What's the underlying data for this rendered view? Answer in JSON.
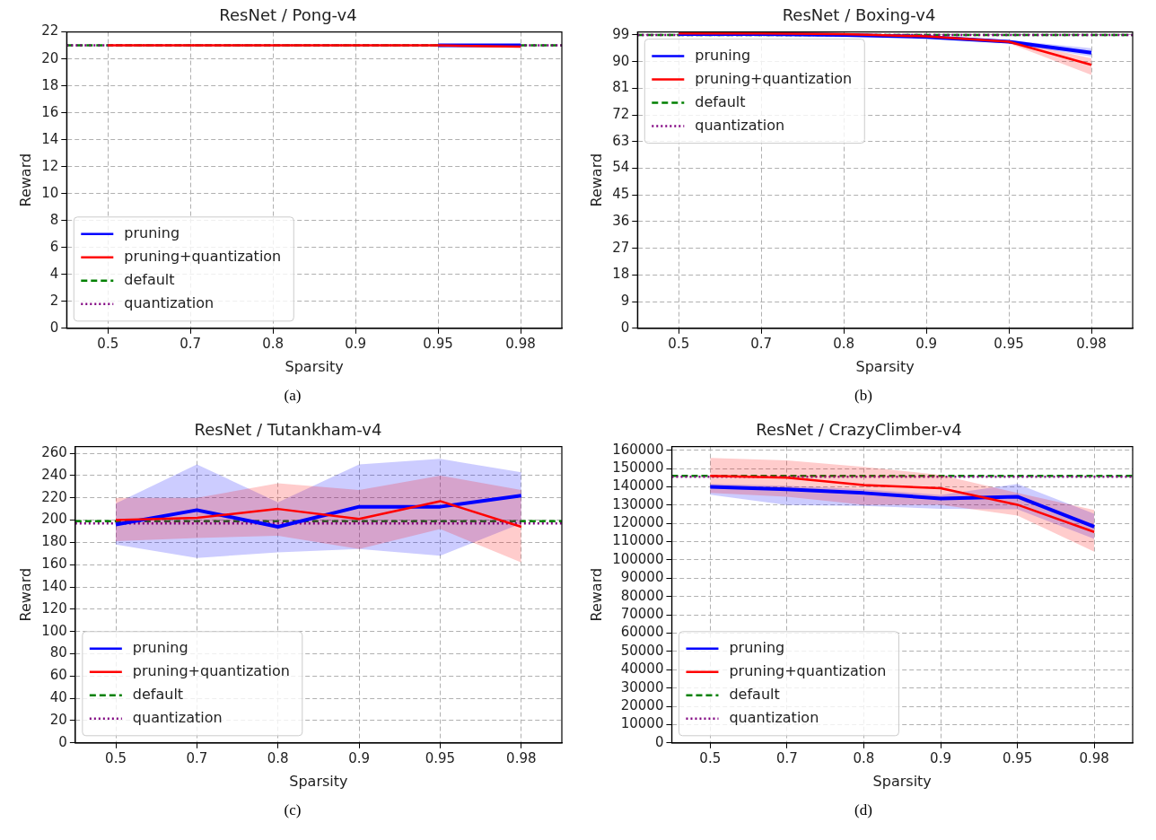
{
  "chart_data": [
    {
      "type": "line",
      "title": "ResNet / Pong-v4",
      "xlabel": "Sparsity",
      "ylabel": "Reward",
      "categories": [
        "0.5",
        "0.7",
        "0.8",
        "0.9",
        "0.95",
        "0.98"
      ],
      "ylim": [
        0,
        22
      ],
      "yticks": [
        0,
        2,
        4,
        6,
        8,
        10,
        12,
        14,
        16,
        18,
        20,
        22
      ],
      "grid": true,
      "legend": "bottom left",
      "annotations": [
        "(a)"
      ],
      "series": [
        {
          "name": "pruning",
          "color": "#0000ff",
          "values": [
            null,
            null,
            null,
            null,
            21,
            21
          ]
        },
        {
          "name": "pruning+quantization",
          "color": "#ff0000",
          "values": [
            21,
            21,
            21,
            21,
            21,
            20.9
          ]
        }
      ],
      "ref_lines": [
        {
          "axis": "y",
          "value": 21,
          "label": "default",
          "color": "#008000",
          "line_style": "dashed"
        },
        {
          "axis": "y",
          "value": 21,
          "label": "quantization",
          "color": "#800080",
          "line_style": "dotted"
        }
      ]
    },
    {
      "type": "line",
      "title": "ResNet / Boxing-v4",
      "xlabel": "Sparsity",
      "ylabel": "Reward",
      "categories": [
        "0.5",
        "0.7",
        "0.8",
        "0.9",
        "0.95",
        "0.98"
      ],
      "ylim": [
        0,
        100
      ],
      "yticks": [
        0,
        9,
        18,
        27,
        36,
        45,
        54,
        63,
        72,
        81,
        90,
        99
      ],
      "grid": true,
      "legend": "top left",
      "annotations": [
        "(b)"
      ],
      "series": [
        {
          "name": "pruning",
          "color": "#0000ff",
          "values": [
            99.3,
            99.3,
            99,
            98.3,
            96.7,
            93
          ],
          "lower": [
            99,
            99,
            98.7,
            97.8,
            96.2,
            91.7
          ],
          "upper": [
            99.6,
            99.6,
            99.3,
            98.8,
            97.2,
            94.5
          ]
        },
        {
          "name": "pruning+quantization",
          "color": "#ff0000",
          "values": [
            99.5,
            99.5,
            99.3,
            98.5,
            96.7,
            88.9
          ],
          "lower": [
            99.2,
            99.2,
            99,
            98,
            96.2,
            85.5
          ],
          "upper": [
            99.8,
            99.8,
            99.6,
            99,
            97.2,
            91.1
          ]
        }
      ],
      "ref_lines": [
        {
          "axis": "y",
          "value": 99,
          "label": "default",
          "color": "#008000",
          "line_style": "dashed"
        },
        {
          "axis": "y",
          "value": 99,
          "label": "quantization",
          "color": "#800080",
          "line_style": "dotted"
        }
      ]
    },
    {
      "type": "line",
      "title": "ResNet / Tutankham-v4",
      "xlabel": "Sparsity",
      "ylabel": "Reward",
      "categories": [
        "0.5",
        "0.7",
        "0.8",
        "0.9",
        "0.95",
        "0.98"
      ],
      "ylim": [
        0,
        266
      ],
      "yticks": [
        0,
        20,
        40,
        60,
        80,
        100,
        120,
        140,
        160,
        180,
        200,
        220,
        240,
        260
      ],
      "grid": true,
      "legend": "bottom left",
      "annotations": [
        "(c)"
      ],
      "series": [
        {
          "name": "pruning",
          "color": "#0000ff",
          "values": [
            196,
            209,
            194,
            212,
            212,
            222
          ],
          "lower": [
            178,
            166,
            171,
            174,
            168,
            197
          ],
          "upper": [
            215,
            250,
            216,
            250,
            255,
            243
          ]
        },
        {
          "name": "pruning+quantization",
          "color": "#ff0000",
          "values": [
            200,
            202,
            210,
            201,
            217,
            194
          ],
          "lower": [
            181,
            184,
            186,
            174,
            192,
            162
          ],
          "upper": [
            220,
            220,
            233,
            227,
            240,
            227
          ]
        }
      ],
      "ref_lines": [
        {
          "axis": "y",
          "value": 199,
          "label": "default",
          "color": "#008000",
          "line_style": "dashed"
        },
        {
          "axis": "y",
          "value": 197,
          "label": "quantization",
          "color": "#800080",
          "line_style": "dotted"
        }
      ]
    },
    {
      "type": "line",
      "title": "ResNet / CrazyClimber-v4",
      "xlabel": "Sparsity",
      "ylabel": "Reward",
      "categories": [
        "0.5",
        "0.7",
        "0.8",
        "0.9",
        "0.95",
        "0.98"
      ],
      "ylim": [
        0,
        162000
      ],
      "yticks": [
        0,
        10000,
        20000,
        30000,
        40000,
        50000,
        60000,
        70000,
        80000,
        90000,
        100000,
        110000,
        120000,
        130000,
        140000,
        150000,
        160000
      ],
      "grid": true,
      "legend": "bottom left",
      "annotations": [
        "(d)"
      ],
      "series": [
        {
          "name": "pruning",
          "color": "#0000ff",
          "values": [
            140000,
            138600,
            136600,
            133600,
            134600,
            118200
          ],
          "lower": [
            135700,
            130000,
            129600,
            128000,
            127700,
            111500
          ],
          "upper": [
            141600,
            140600,
            138600,
            135600,
            141600,
            125200
          ]
        },
        {
          "name": "pruning+quantization",
          "color": "#ff0000",
          "values": [
            146000,
            145000,
            141000,
            139200,
            130200,
            115300
          ],
          "lower": [
            136600,
            134600,
            130200,
            130200,
            124300,
            104500
          ],
          "upper": [
            155800,
            154500,
            150900,
            146500,
            136600,
            127300
          ]
        }
      ],
      "ref_lines": [
        {
          "axis": "y",
          "value": 146000,
          "label": "default",
          "color": "#008000",
          "line_style": "dashed"
        },
        {
          "axis": "y",
          "value": 145500,
          "label": "quantization",
          "color": "#800080",
          "line_style": "dotted"
        }
      ]
    }
  ]
}
